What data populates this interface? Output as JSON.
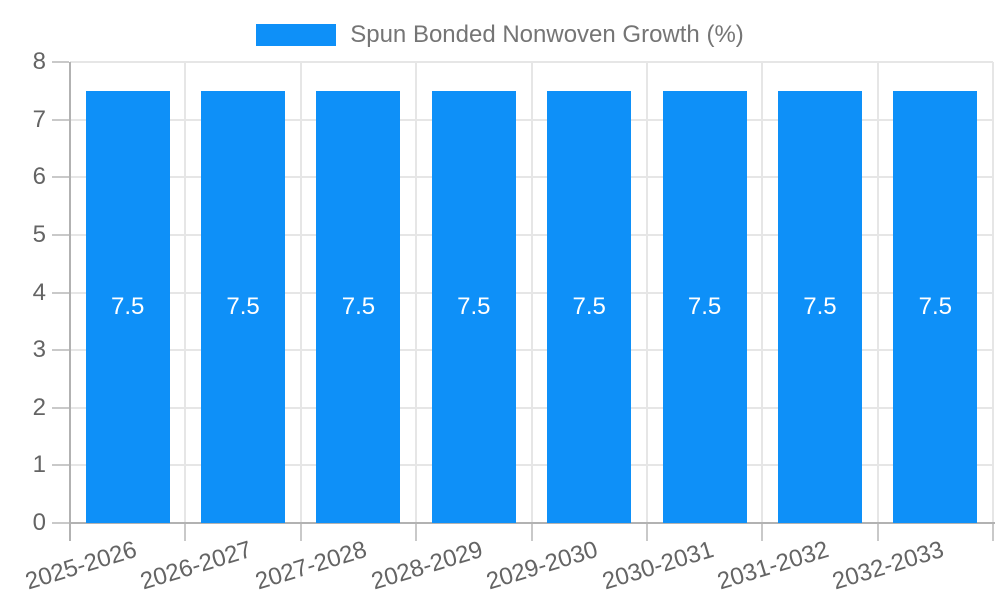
{
  "chart_data": {
    "type": "bar",
    "title": "",
    "legend": "Spun Bonded Nonwoven Growth (%)",
    "legend_position": "top",
    "categories": [
      "2025-2026",
      "2026-2027",
      "2027-2028",
      "2028-2029",
      "2029-2030",
      "2030-2031",
      "2031-2032",
      "2032-2033"
    ],
    "values": [
      7.5,
      7.5,
      7.5,
      7.5,
      7.5,
      7.5,
      7.5,
      7.5
    ],
    "bar_labels": [
      "7.5",
      "7.5",
      "7.5",
      "7.5",
      "7.5",
      "7.5",
      "7.5",
      "7.5"
    ],
    "xlabel": "",
    "ylabel": "",
    "ylim": [
      0,
      8
    ],
    "yticks": [
      0,
      1,
      2,
      3,
      4,
      5,
      6,
      7,
      8
    ],
    "grid": true,
    "colors": {
      "bar": "#0e90f8",
      "grid": "#e6e6e6",
      "axis": "#b2b2b2",
      "tick": "#c9c9c9",
      "tick_label": "#646464",
      "legend_text": "#757575",
      "bar_label": "#ffffff"
    }
  }
}
